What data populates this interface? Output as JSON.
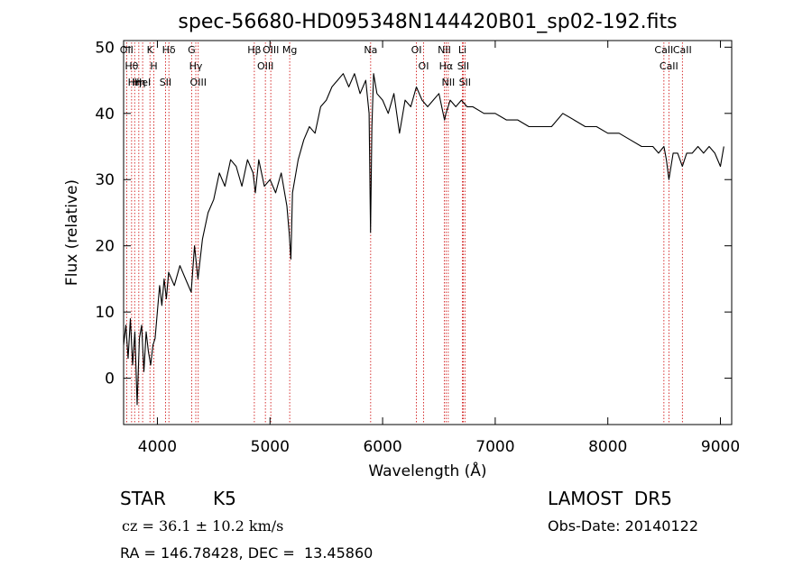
{
  "chart_data": {
    "type": "line",
    "title": "spec-56680-HD095348N144420B01_sp02-192.fits",
    "xlabel": "Wavelength (Å)",
    "ylabel": "Flux (relative)",
    "xlim": [
      3700,
      9100
    ],
    "ylim": [
      -7,
      51
    ],
    "xticks": [
      4000,
      5000,
      6000,
      7000,
      8000,
      9000
    ],
    "yticks": [
      0,
      10,
      20,
      30,
      40,
      50
    ],
    "grid": false,
    "line_color": "#000000",
    "marker_color": "#cc0000",
    "series": [
      {
        "x": [
          3700,
          3720,
          3740,
          3760,
          3780,
          3800,
          3820,
          3840,
          3860,
          3880,
          3900,
          3920,
          3940,
          3960,
          3980,
          4000,
          4020,
          4040,
          4060,
          4080,
          4100,
          4150,
          4200,
          4250,
          4300,
          4330,
          4360,
          4400,
          4450,
          4500,
          4550,
          4600,
          4650,
          4700,
          4750,
          4800,
          4850,
          4870,
          4900,
          4950,
          5000,
          5050,
          5100,
          5150,
          5170,
          5185,
          5200,
          5250,
          5300,
          5350,
          5400,
          5450,
          5500,
          5550,
          5600,
          5650,
          5700,
          5750,
          5800,
          5850,
          5880,
          5893,
          5905,
          5920,
          5950,
          6000,
          6050,
          6100,
          6150,
          6200,
          6250,
          6300,
          6350,
          6400,
          6450,
          6500,
          6550,
          6563,
          6600,
          6650,
          6700,
          6750,
          6800,
          6900,
          7000,
          7100,
          7200,
          7300,
          7400,
          7500,
          7600,
          7700,
          7800,
          7900,
          8000,
          8100,
          8200,
          8300,
          8400,
          8450,
          8498,
          8520,
          8542,
          8580,
          8620,
          8662,
          8700,
          8750,
          8800,
          8850,
          8900,
          8950,
          9000,
          9030
        ],
        "y": [
          5,
          8,
          3,
          9,
          2,
          7,
          -4,
          6,
          8,
          1,
          7,
          4,
          2,
          5,
          6,
          10,
          14,
          11,
          15,
          12,
          16,
          14,
          17,
          15,
          13,
          20,
          15,
          21,
          25,
          27,
          31,
          29,
          33,
          32,
          29,
          33,
          31,
          28,
          33,
          29,
          30,
          28,
          31,
          26,
          22,
          18,
          28,
          33,
          36,
          38,
          37,
          41,
          42,
          44,
          45,
          46,
          44,
          46,
          43,
          45,
          40,
          22,
          38,
          46,
          43,
          42,
          40,
          43,
          37,
          42,
          41,
          44,
          42,
          41,
          42,
          43,
          39,
          40,
          42,
          41,
          42,
          41,
          41,
          40,
          40,
          39,
          39,
          38,
          38,
          38,
          40,
          39,
          38,
          38,
          37,
          37,
          36,
          35,
          35,
          34,
          35,
          33,
          30,
          34,
          34,
          32,
          34,
          34,
          35,
          34,
          35,
          34,
          32,
          35
        ]
      }
    ],
    "line_markers": [
      {
        "wl": 3727,
        "label": "OII"
      },
      {
        "wl": 3771,
        "label": "Hθ"
      },
      {
        "wl": 3798,
        "label": "Hη"
      },
      {
        "wl": 3835,
        "label": "Hη"
      },
      {
        "wl": 3869,
        "label": "HeI"
      },
      {
        "wl": 3934,
        "label": "K"
      },
      {
        "wl": 3969,
        "label": "H"
      },
      {
        "wl": 4072,
        "label": "SII"
      },
      {
        "wl": 4102,
        "label": "Hδ"
      },
      {
        "wl": 4304,
        "label": "G"
      },
      {
        "wl": 4341,
        "label": "Hγ"
      },
      {
        "wl": 4363,
        "label": "OIII"
      },
      {
        "wl": 4861,
        "label": "Hβ"
      },
      {
        "wl": 4959,
        "label": "OIII"
      },
      {
        "wl": 5007,
        "label": "OIII"
      },
      {
        "wl": 5175,
        "label": "Mg"
      },
      {
        "wl": 5894,
        "label": "Na"
      },
      {
        "wl": 6300,
        "label": "OI"
      },
      {
        "wl": 6364,
        "label": "OI"
      },
      {
        "wl": 6548,
        "label": "NII"
      },
      {
        "wl": 6563,
        "label": "Hα"
      },
      {
        "wl": 6583,
        "label": "NII"
      },
      {
        "wl": 6708,
        "label": "Li"
      },
      {
        "wl": 6716,
        "label": "SII"
      },
      {
        "wl": 6731,
        "label": "SII"
      },
      {
        "wl": 8498,
        "label": "CaII"
      },
      {
        "wl": 8542,
        "label": "CaII"
      },
      {
        "wl": 8662,
        "label": "CaII"
      }
    ]
  },
  "info": {
    "object_class": "STAR",
    "subclass": "K5",
    "cz": "cz = 36.1 ± 10.2 km/s",
    "coords": "RA = 146.78428, DEC =  13.45860",
    "survey": "LAMOST  DR5",
    "obs_date": "Obs-Date: 20140122"
  }
}
